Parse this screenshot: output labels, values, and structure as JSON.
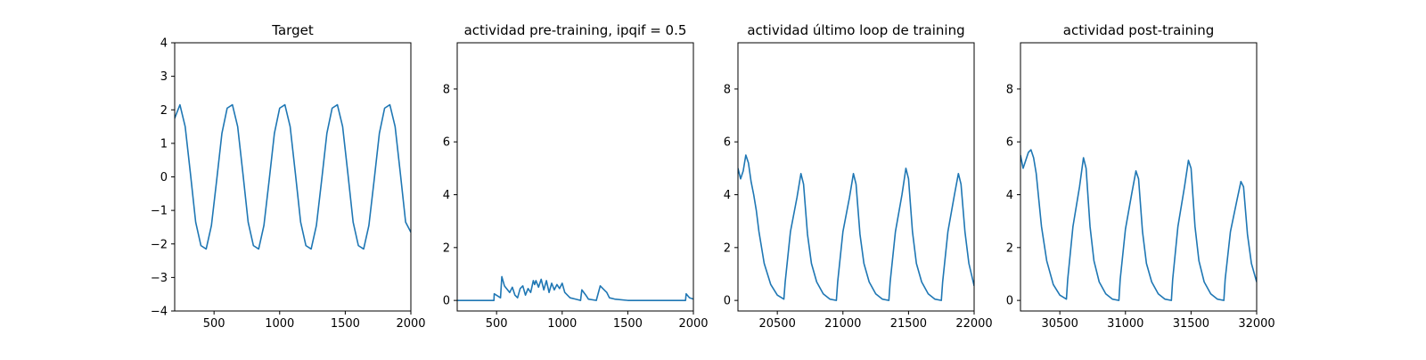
{
  "chart_data": [
    {
      "type": "line",
      "title": "Target",
      "xlabel": "",
      "ylabel": "",
      "xlim": [
        200,
        2000
      ],
      "ylim": [
        -4,
        4
      ],
      "xticks": [
        500,
        1000,
        1500,
        2000
      ],
      "yticks": [
        -4,
        -3,
        -2,
        -1,
        0,
        1,
        2,
        3,
        4
      ],
      "xtick_labels": [
        "500",
        "1000",
        "1500",
        "2000"
      ],
      "ytick_labels": [
        "−4",
        "−3",
        "−2",
        "−1",
        "0",
        "1",
        "2",
        "3",
        "4"
      ],
      "color": "#1f77b4",
      "x": [
        200,
        240,
        280,
        320,
        360,
        400,
        440,
        480,
        520,
        560,
        600,
        640,
        680,
        720,
        760,
        800,
        840,
        880,
        920,
        960,
        1000,
        1040,
        1080,
        1120,
        1160,
        1200,
        1240,
        1280,
        1320,
        1360,
        1400,
        1440,
        1480,
        1520,
        1560,
        1600,
        1640,
        1680,
        1720,
        1760,
        1800,
        1840,
        1880,
        1920,
        1960,
        2000
      ],
      "y": [
        1.75,
        2.15,
        1.5,
        0.1,
        -1.35,
        -2.05,
        -2.15,
        -1.45,
        -0.1,
        1.3,
        2.05,
        2.15,
        1.5,
        0.1,
        -1.35,
        -2.05,
        -2.15,
        -1.45,
        -0.1,
        1.3,
        2.05,
        2.15,
        1.5,
        0.1,
        -1.35,
        -2.05,
        -2.15,
        -1.45,
        -0.1,
        1.3,
        2.05,
        2.15,
        1.5,
        0.1,
        -1.35,
        -2.05,
        -2.15,
        -1.45,
        -0.1,
        1.3,
        2.05,
        2.15,
        1.5,
        0.1,
        -1.35,
        -1.65
      ]
    },
    {
      "type": "line",
      "title": "actividad pre-training, ipqif = 0.5",
      "xlabel": "",
      "ylabel": "",
      "xlim": [
        200,
        2000
      ],
      "ylim": [
        -0.4,
        9.75
      ],
      "xticks": [
        500,
        1000,
        1500,
        2000
      ],
      "yticks": [
        0,
        2,
        4,
        6,
        8
      ],
      "xtick_labels": [
        "500",
        "1000",
        "1500",
        "2000"
      ],
      "ytick_labels": [
        "0",
        "2",
        "4",
        "6",
        "8"
      ],
      "color": "#1f77b4",
      "x": [
        200,
        480,
        482,
        530,
        540,
        560,
        600,
        620,
        640,
        660,
        680,
        700,
        720,
        740,
        760,
        780,
        790,
        800,
        820,
        840,
        860,
        880,
        900,
        920,
        940,
        960,
        980,
        1000,
        1020,
        1060,
        1100,
        1140,
        1150,
        1180,
        1200,
        1260,
        1290,
        1320,
        1340,
        1360,
        1400,
        1500,
        1600,
        1700,
        1800,
        1940,
        1945,
        1970,
        2000
      ],
      "y": [
        0,
        0,
        0.25,
        0.1,
        0.9,
        0.55,
        0.3,
        0.5,
        0.2,
        0.1,
        0.45,
        0.55,
        0.2,
        0.45,
        0.3,
        0.75,
        0.6,
        0.75,
        0.5,
        0.8,
        0.4,
        0.75,
        0.3,
        0.65,
        0.4,
        0.6,
        0.45,
        0.65,
        0.3,
        0.1,
        0.05,
        0.0,
        0.4,
        0.2,
        0.05,
        0.0,
        0.55,
        0.4,
        0.3,
        0.1,
        0.05,
        0.0,
        0.0,
        0.0,
        0.0,
        0.0,
        0.25,
        0.1,
        0.05
      ]
    },
    {
      "type": "line",
      "title": "actividad último loop de training",
      "xlabel": "",
      "ylabel": "",
      "xlim": [
        20200,
        22000
      ],
      "ylim": [
        -0.4,
        9.75
      ],
      "xticks": [
        20500,
        21000,
        21500,
        22000
      ],
      "yticks": [
        0,
        2,
        4,
        6,
        8
      ],
      "xtick_labels": [
        "20500",
        "21000",
        "21500",
        "22000"
      ],
      "ytick_labels": [
        "0",
        "2",
        "4",
        "6",
        "8"
      ],
      "color": "#1f77b4",
      "x": [
        20200,
        20220,
        20240,
        20260,
        20280,
        20300,
        20320,
        20340,
        20360,
        20400,
        20450,
        20500,
        20550,
        20560,
        20600,
        20650,
        20680,
        20700,
        20730,
        20760,
        20800,
        20850,
        20900,
        20950,
        20960,
        21000,
        21050,
        21080,
        21100,
        21130,
        21160,
        21200,
        21250,
        21300,
        21350,
        21360,
        21400,
        21450,
        21480,
        21500,
        21530,
        21560,
        21600,
        21650,
        21700,
        21750,
        21760,
        21800,
        21850,
        21880,
        21900,
        21930,
        21960,
        22000
      ],
      "y": [
        5.0,
        4.6,
        4.9,
        5.5,
        5.2,
        4.5,
        4.0,
        3.4,
        2.6,
        1.4,
        0.6,
        0.2,
        0.05,
        0.7,
        2.6,
        3.9,
        4.8,
        4.4,
        2.5,
        1.4,
        0.7,
        0.25,
        0.05,
        0.0,
        0.7,
        2.6,
        3.9,
        4.8,
        4.4,
        2.5,
        1.4,
        0.7,
        0.25,
        0.05,
        0.0,
        0.7,
        2.6,
        4.0,
        5.0,
        4.6,
        2.6,
        1.4,
        0.7,
        0.25,
        0.05,
        0.0,
        0.7,
        2.6,
        4.0,
        4.8,
        4.4,
        2.6,
        1.4,
        0.55
      ]
    },
    {
      "type": "line",
      "title": "actividad post-training",
      "xlabel": "",
      "ylabel": "",
      "xlim": [
        30200,
        32000
      ],
      "ylim": [
        -0.4,
        9.75
      ],
      "xticks": [
        30500,
        31000,
        31500,
        32000
      ],
      "yticks": [
        0,
        2,
        4,
        6,
        8
      ],
      "xtick_labels": [
        "30500",
        "31000",
        "31500",
        "32000"
      ],
      "ytick_labels": [
        "0",
        "2",
        "4",
        "6",
        "8"
      ],
      "color": "#1f77b4",
      "x": [
        30200,
        30220,
        30240,
        30260,
        30280,
        30300,
        30320,
        30340,
        30360,
        30400,
        30450,
        30500,
        30550,
        30560,
        30600,
        30650,
        30680,
        30700,
        30730,
        30760,
        30800,
        30850,
        30900,
        30950,
        30960,
        31000,
        31050,
        31080,
        31100,
        31130,
        31160,
        31200,
        31250,
        31300,
        31350,
        31360,
        31400,
        31450,
        31480,
        31500,
        31530,
        31560,
        31600,
        31650,
        31700,
        31750,
        31760,
        31800,
        31850,
        31880,
        31900,
        31930,
        31960,
        32000
      ],
      "y": [
        5.5,
        5.0,
        5.3,
        5.6,
        5.7,
        5.4,
        4.8,
        3.8,
        2.8,
        1.5,
        0.6,
        0.2,
        0.05,
        0.8,
        2.8,
        4.3,
        5.4,
        5.0,
        2.8,
        1.5,
        0.7,
        0.25,
        0.05,
        0.0,
        0.8,
        2.7,
        4.1,
        4.9,
        4.6,
        2.6,
        1.4,
        0.7,
        0.25,
        0.05,
        0.0,
        0.8,
        2.8,
        4.3,
        5.3,
        5.0,
        2.8,
        1.5,
        0.7,
        0.25,
        0.05,
        0.0,
        0.8,
        2.6,
        3.8,
        4.5,
        4.3,
        2.5,
        1.4,
        0.7
      ]
    }
  ]
}
